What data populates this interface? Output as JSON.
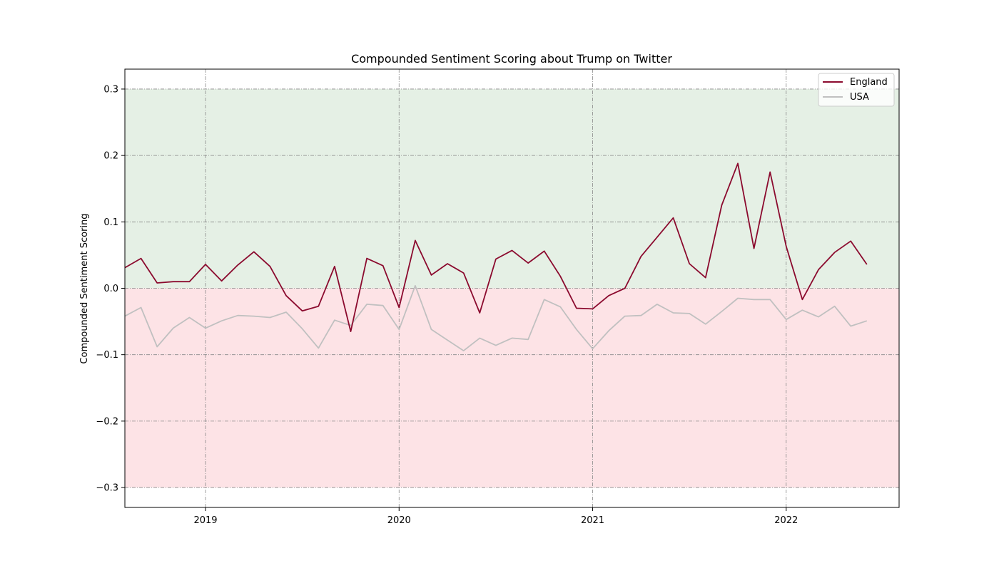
{
  "chart_data": {
    "type": "line",
    "title": "Compounded Sentiment Scoring about Trump on Twitter",
    "xlabel": "",
    "ylabel": "Compounded Sentiment Scoring",
    "xlim": [
      "2018-08-01",
      "2022-08-01"
    ],
    "ylim": [
      -0.33,
      0.33
    ],
    "x_ticks": [
      "2019-01-01",
      "2020-01-01",
      "2021-01-01",
      "2022-01-01"
    ],
    "x_tick_labels": [
      "2019",
      "2020",
      "2021",
      "2022"
    ],
    "y_ticks": [
      -0.3,
      -0.2,
      -0.1,
      0.0,
      0.1,
      0.2,
      0.3
    ],
    "y_tick_labels": [
      "−0.3",
      "−0.2",
      "−0.1",
      "0.0",
      "0.1",
      "0.2",
      "0.3"
    ],
    "grid": true,
    "legend_position": "top-right",
    "bands": [
      {
        "from": 0.0,
        "to": 0.3,
        "color": "#e5f0e5"
      },
      {
        "from": -0.3,
        "to": 0.0,
        "color": "#fde3e6"
      }
    ],
    "x": [
      "2018-08",
      "2018-09",
      "2018-10",
      "2018-11",
      "2018-12",
      "2019-01",
      "2019-02",
      "2019-03",
      "2019-04",
      "2019-05",
      "2019-06",
      "2019-07",
      "2019-08",
      "2019-09",
      "2019-10",
      "2019-11",
      "2019-12",
      "2020-01",
      "2020-02",
      "2020-03",
      "2020-04",
      "2020-05",
      "2020-06",
      "2020-07",
      "2020-08",
      "2020-09",
      "2020-10",
      "2020-11",
      "2020-12",
      "2021-01",
      "2021-02",
      "2021-03",
      "2021-04",
      "2021-05",
      "2021-06",
      "2021-07",
      "2021-08",
      "2021-09",
      "2021-10",
      "2021-11",
      "2021-12",
      "2022-01",
      "2022-02",
      "2022-03",
      "2022-04",
      "2022-05",
      "2022-06"
    ],
    "series": [
      {
        "name": "England",
        "color": "#8b0a2e",
        "values": [
          0.031,
          0.045,
          0.008,
          0.01,
          0.01,
          0.036,
          0.011,
          0.035,
          0.055,
          0.033,
          -0.011,
          -0.034,
          -0.027,
          0.033,
          -0.065,
          0.045,
          0.034,
          -0.029,
          0.072,
          0.02,
          0.037,
          0.023,
          -0.037,
          0.044,
          0.057,
          0.038,
          0.056,
          0.018,
          -0.03,
          -0.031,
          -0.011,
          0.0,
          0.048,
          0.077,
          0.106,
          0.037,
          0.016,
          0.125,
          0.188,
          0.06,
          0.175,
          0.063,
          -0.017,
          0.028,
          0.054,
          0.071,
          0.036
        ]
      },
      {
        "name": "USA",
        "color": "#c0c0c0",
        "values": [
          -0.042,
          -0.029,
          -0.088,
          -0.06,
          -0.044,
          -0.06,
          -0.049,
          -0.041,
          -0.042,
          -0.044,
          -0.036,
          -0.061,
          -0.09,
          -0.048,
          -0.056,
          -0.024,
          -0.026,
          -0.062,
          0.004,
          -0.062,
          -0.078,
          -0.094,
          -0.075,
          -0.086,
          -0.075,
          -0.077,
          -0.017,
          -0.028,
          -0.062,
          -0.091,
          -0.064,
          -0.042,
          -0.041,
          -0.024,
          -0.037,
          -0.038,
          -0.054,
          -0.035,
          -0.015,
          -0.017,
          -0.017,
          -0.047,
          -0.033,
          -0.043,
          -0.027,
          -0.057,
          -0.049
        ]
      }
    ]
  }
}
